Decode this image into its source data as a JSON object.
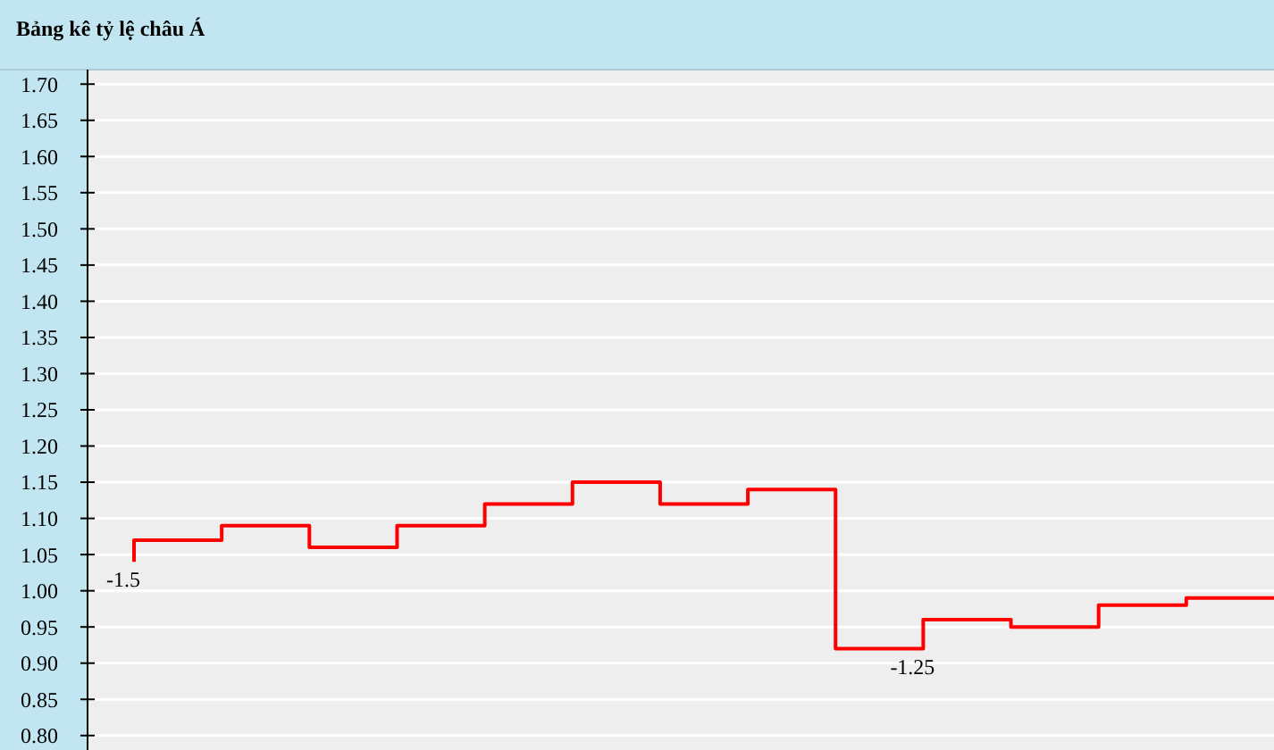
{
  "chart_data": {
    "type": "step",
    "title": "Bảng kê tỷ lệ châu Á",
    "categories": [
      null,
      null,
      null,
      null,
      null,
      null,
      null,
      null,
      null,
      null,
      null,
      null,
      null,
      null
    ],
    "series": [
      {
        "color": "#ff0000",
        "values": [
          1.04,
          1.07,
          1.09,
          1.06,
          1.09,
          1.12,
          1.15,
          1.12,
          1.14,
          0.92,
          0.96,
          0.95,
          0.98,
          0.99
        ]
      }
    ],
    "annotations": [
      "-1.5",
      {
        "text": "-1.25",
        "y": 0.92
      }
    ],
    "ylim": [
      0.78,
      1.72
    ],
    "yticks": [
      {
        "value": 0.8,
        "label": "0.80"
      },
      {
        "value": 0.85,
        "label": "0.85"
      },
      {
        "value": 0.9,
        "label": "0.90"
      },
      {
        "value": 0.95,
        "label": "0.95"
      },
      {
        "value": 1.0,
        "label": "1.00"
      },
      {
        "value": 1.05,
        "label": "1.05"
      },
      {
        "value": 1.1,
        "label": "1.10"
      },
      {
        "value": 1.15,
        "label": "1.15"
      },
      {
        "value": 1.2,
        "label": "1.20"
      },
      {
        "value": 1.25,
        "label": "1.25"
      },
      {
        "value": 1.3,
        "label": "1.30"
      },
      {
        "value": 1.35,
        "label": "1.35"
      },
      {
        "value": 1.4,
        "label": "1.40"
      },
      {
        "value": 1.45,
        "label": "1.45"
      },
      {
        "value": 1.5,
        "label": "1.50"
      },
      {
        "value": 1.55,
        "label": "1.55"
      },
      {
        "value": 1.6,
        "label": "1.60"
      },
      {
        "value": 1.65,
        "label": "1.65"
      },
      {
        "value": 1.7,
        "label": "1.70"
      }
    ],
    "grid": "y",
    "tick_labels": "y"
  }
}
